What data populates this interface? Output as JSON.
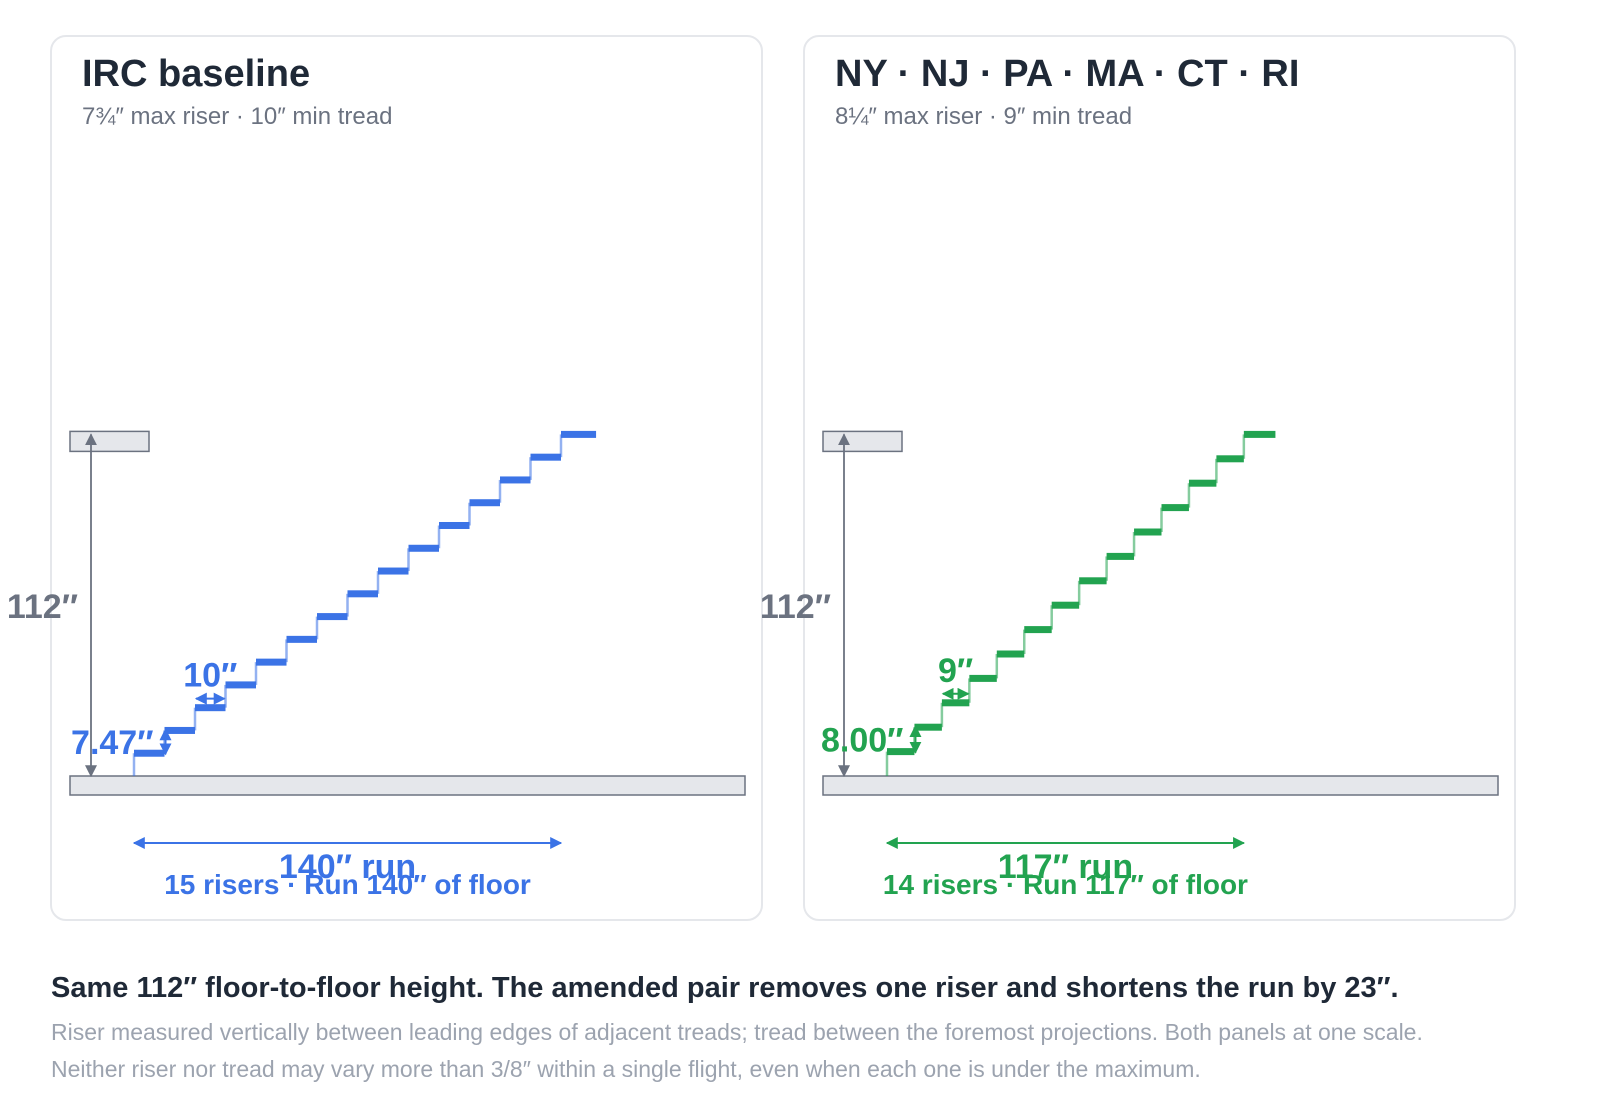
{
  "panels": [
    {
      "title": "IRC baseline",
      "subtitle": "7¾″ max riser · 10″ min tread",
      "color": "#3b73e6",
      "risers": 15,
      "riser_height_in": 7.47,
      "tread_depth_in": 10,
      "height_in": 112,
      "run_in": 140,
      "height_label": "112″",
      "riser_label": "7.47″",
      "tread_label": "10″",
      "run_label": "140″ run",
      "summary": "15 risers · Run 140″ of floor"
    },
    {
      "title": "NY · NJ · PA · MA · CT · RI",
      "subtitle": "8¼″ max riser · 9″ min tread",
      "color": "#22a350",
      "risers": 14,
      "riser_height_in": 8.0,
      "tread_depth_in": 9,
      "height_in": 112,
      "run_in": 117,
      "height_label": "112″",
      "riser_label": "8.00″",
      "tread_label": "9″",
      "run_label": "117″ run",
      "summary": "14 risers · Run 117″ of floor"
    }
  ],
  "caption": "Same 112″ floor-to-floor height. The amended pair removes one riser and shortens the run by 23″.",
  "notes": [
    "Riser measured vertically between leading edges of adjacent treads; tread between the foremost projections. Both panels at one scale.",
    "Neither riser nor tread may vary more than 3/8″ within a single flight, even when each one is under the maximum."
  ],
  "colors": {
    "slab": "#e5e7eb",
    "slab_stroke": "#6b7280",
    "dimension": "#6b7280"
  }
}
